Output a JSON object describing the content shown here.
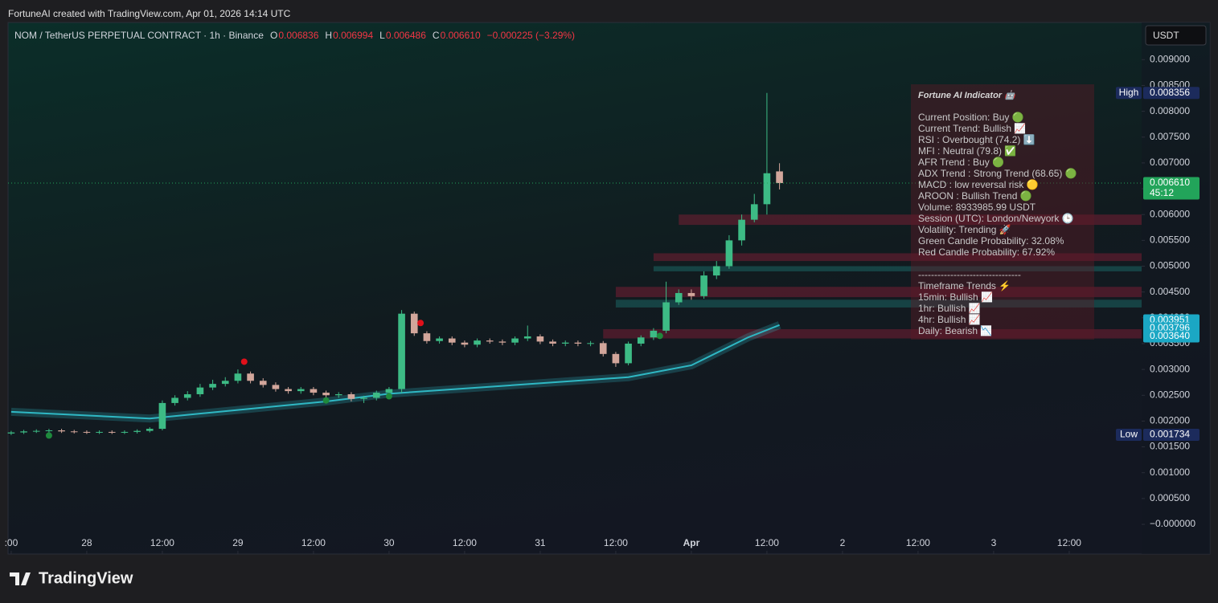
{
  "header": {
    "credit": "FortuneAI created with TradingView.com, Apr 01, 2026 14:14 UTC",
    "symbol": "NOM / TetherUS PERPETUAL CONTRACT · 1h · Binance",
    "ohlc": [
      {
        "key": "O",
        "value": "0.006836"
      },
      {
        "key": "H",
        "value": "0.006994"
      },
      {
        "key": "L",
        "value": "0.006486"
      },
      {
        "key": "C",
        "value": "0.006610"
      }
    ],
    "change": "−0.000225 (−3.29%)",
    "currency": "USDT"
  },
  "footer": {
    "logo": "TradingView"
  },
  "chart_data": {
    "type": "candlestick",
    "xlim": [
      -12.5,
      167.5
    ],
    "ylim": [
      -0.000575,
      0.00972
    ],
    "xticks": [
      {
        "value": -12,
        "label": ":00"
      },
      {
        "value": 0,
        "label": "28"
      },
      {
        "value": 12,
        "label": "12:00"
      },
      {
        "value": 24,
        "label": "29"
      },
      {
        "value": 36,
        "label": "12:00"
      },
      {
        "value": 48,
        "label": "30"
      },
      {
        "value": 60,
        "label": "12:00"
      },
      {
        "value": 72,
        "label": "31"
      },
      {
        "value": 84,
        "label": "12:00"
      },
      {
        "value": 96,
        "label": "Apr"
      },
      {
        "value": 108,
        "label": "12:00"
      },
      {
        "value": 120,
        "label": "2"
      },
      {
        "value": 132,
        "label": "12:00"
      },
      {
        "value": 144,
        "label": "3"
      },
      {
        "value": 156,
        "label": "12:00"
      }
    ],
    "yticks": [
      {
        "value": 0.009,
        "label": "0.009000"
      },
      {
        "value": 0.0085,
        "label": "0.008500"
      },
      {
        "value": 0.008,
        "label": "0.008000"
      },
      {
        "value": 0.0075,
        "label": "0.007500"
      },
      {
        "value": 0.007,
        "label": "0.007000"
      },
      {
        "value": 0.0065,
        "label": "0.006500"
      },
      {
        "value": 0.006,
        "label": "0.006000"
      },
      {
        "value": 0.0055,
        "label": "0.005500"
      },
      {
        "value": 0.005,
        "label": "0.005000"
      },
      {
        "value": 0.0045,
        "label": "0.004500"
      },
      {
        "value": 0.004,
        "label": "0.004000"
      },
      {
        "value": 0.0035,
        "label": "0.003500"
      },
      {
        "value": 0.003,
        "label": "0.003000"
      },
      {
        "value": 0.0025,
        "label": "0.002500"
      },
      {
        "value": 0.002,
        "label": "0.002000"
      },
      {
        "value": 0.0015,
        "label": "0.001500"
      },
      {
        "value": 0.001,
        "label": "0.001000"
      },
      {
        "value": 0.0005,
        "label": "0.000500"
      },
      {
        "value": 0,
        "label": "−0.000000"
      }
    ],
    "up_color": "#3dbb85",
    "down_color": "#d2a69b",
    "x": [
      -12,
      -10,
      -8,
      -6,
      -4,
      -2,
      0,
      2,
      4,
      6,
      8,
      10,
      12,
      14,
      16,
      18,
      20,
      22,
      24,
      26,
      28,
      30,
      32,
      34,
      36,
      38,
      40,
      42,
      44,
      46,
      48,
      50,
      52,
      54,
      56,
      58,
      60,
      62,
      64,
      66,
      68,
      70,
      72,
      74,
      76,
      78,
      80,
      82,
      84,
      86,
      88,
      90,
      92,
      94,
      96,
      98,
      100,
      102,
      104,
      106,
      108,
      110
    ],
    "open": [
      0.00176,
      0.00178,
      0.0018,
      0.00181,
      0.00182,
      0.0018,
      0.00179,
      0.00178,
      0.00179,
      0.00178,
      0.00179,
      0.00181,
      0.00185,
      0.00235,
      0.00245,
      0.00252,
      0.00265,
      0.00272,
      0.00278,
      0.00292,
      0.00278,
      0.0027,
      0.00262,
      0.00258,
      0.00262,
      0.00255,
      0.0025,
      0.00252,
      0.00243,
      0.00245,
      0.00255,
      0.00262,
      0.00408,
      0.0037,
      0.00355,
      0.0036,
      0.00352,
      0.00348,
      0.00356,
      0.00354,
      0.00352,
      0.0036,
      0.00364,
      0.00354,
      0.0035,
      0.00352,
      0.0035,
      0.00351,
      0.0033,
      0.00312,
      0.0035,
      0.00362,
      0.00375,
      0.0043,
      0.00448,
      0.00442,
      0.00482,
      0.005,
      0.0055,
      0.0059,
      0.0062,
      0.006836
    ],
    "high": [
      0.00181,
      0.00183,
      0.00184,
      0.00185,
      0.00185,
      0.00183,
      0.00182,
      0.00182,
      0.00182,
      0.00182,
      0.00184,
      0.00188,
      0.0024,
      0.0025,
      0.00258,
      0.00272,
      0.0028,
      0.00285,
      0.003,
      0.00296,
      0.00283,
      0.00275,
      0.00266,
      0.00266,
      0.00266,
      0.00259,
      0.00256,
      0.00256,
      0.00249,
      0.00259,
      0.00266,
      0.00415,
      0.00412,
      0.00374,
      0.00364,
      0.00364,
      0.00356,
      0.0036,
      0.0036,
      0.00358,
      0.00364,
      0.00385,
      0.00368,
      0.00358,
      0.00356,
      0.00356,
      0.00355,
      0.00355,
      0.00334,
      0.00354,
      0.00366,
      0.0038,
      0.0047,
      0.00455,
      0.00455,
      0.0049,
      0.0051,
      0.0056,
      0.006,
      0.0064,
      0.008356,
      0.006994
    ],
    "low": [
      0.00173,
      0.00175,
      0.00177,
      0.00178,
      0.00177,
      0.00176,
      0.00175,
      0.00175,
      0.00175,
      0.00175,
      0.00176,
      0.00178,
      0.00182,
      0.0023,
      0.0024,
      0.00247,
      0.0026,
      0.00267,
      0.00273,
      0.00273,
      0.00265,
      0.00257,
      0.00253,
      0.00253,
      0.0025,
      0.00245,
      0.00245,
      0.00238,
      0.00235,
      0.0024,
      0.0025,
      0.00255,
      0.00365,
      0.0035,
      0.0035,
      0.00347,
      0.00343,
      0.00343,
      0.0035,
      0.00347,
      0.00347,
      0.00355,
      0.00349,
      0.00345,
      0.00345,
      0.00345,
      0.00345,
      0.00325,
      0.00305,
      0.00308,
      0.00345,
      0.00357,
      0.0037,
      0.00425,
      0.00435,
      0.00437,
      0.00475,
      0.00495,
      0.0054,
      0.00585,
      0.006,
      0.006486
    ],
    "close": [
      0.00178,
      0.0018,
      0.00181,
      0.00182,
      0.0018,
      0.00179,
      0.00178,
      0.00179,
      0.00178,
      0.00179,
      0.00181,
      0.00185,
      0.00235,
      0.00245,
      0.00252,
      0.00265,
      0.00272,
      0.00278,
      0.00292,
      0.00278,
      0.0027,
      0.00262,
      0.00258,
      0.00262,
      0.00255,
      0.0025,
      0.00252,
      0.00243,
      0.00245,
      0.00255,
      0.00262,
      0.00408,
      0.0037,
      0.00355,
      0.0036,
      0.00352,
      0.00348,
      0.00356,
      0.00354,
      0.00352,
      0.0036,
      0.00364,
      0.00354,
      0.0035,
      0.00352,
      0.0035,
      0.00351,
      0.0033,
      0.00312,
      0.0035,
      0.00362,
      0.00375,
      0.0043,
      0.00448,
      0.00442,
      0.00482,
      0.005,
      0.0055,
      0.0059,
      0.0062,
      0.0068,
      0.00661
    ],
    "ribbon": {
      "color": "#2fb8c4",
      "x": [
        -12,
        10,
        38,
        48,
        86,
        96,
        105,
        110
      ],
      "values": [
        0.00218,
        0.00205,
        0.00238,
        0.00253,
        0.00285,
        0.00308,
        0.00362,
        0.00386
      ]
    },
    "signals": [
      {
        "x": -6,
        "value": 0.00172,
        "color": "#1e8a3c"
      },
      {
        "x": 25,
        "value": 0.00315,
        "color": "#e0101a"
      },
      {
        "x": 53,
        "value": 0.0039,
        "color": "#e0101a"
      },
      {
        "x": 38,
        "value": 0.0024,
        "color": "#1e8a3c"
      },
      {
        "x": 48,
        "value": 0.00248,
        "color": "#1e8a3c"
      },
      {
        "x": 91,
        "value": 0.00365,
        "color": "#1e8a3c"
      }
    ],
    "zones": [
      {
        "x": 94,
        "low": 0.0058,
        "high": 0.006,
        "color": "#b0203f"
      },
      {
        "x": 90,
        "low": 0.0051,
        "high": 0.00525,
        "color": "#b0203f"
      },
      {
        "x": 90,
        "low": 0.0049,
        "high": 0.005,
        "color": "#1f8f8a"
      },
      {
        "x": 84,
        "low": 0.0044,
        "high": 0.0046,
        "color": "#b0203f"
      },
      {
        "x": 84,
        "low": 0.0042,
        "high": 0.00435,
        "color": "#1f8f8a"
      },
      {
        "x": 82,
        "low": 0.0036,
        "high": 0.00378,
        "color": "#b0203f"
      }
    ],
    "price_tags": [
      {
        "value": 0.008356,
        "label": "0.008356",
        "tag": "High",
        "color": "#1c2b5c"
      },
      {
        "value": 0.00661,
        "label": "0.006610",
        "tag": "45:12",
        "color": "#22a45a"
      },
      {
        "value": 0.003951,
        "label": "0.003951",
        "color": "#1ba7c4"
      },
      {
        "value": 0.003796,
        "label": "0.003796",
        "color": "#1ba7c4"
      },
      {
        "value": 0.00364,
        "label": "0.003640",
        "color": "#1ba7c4"
      },
      {
        "value": 0.001734,
        "label": "0.001734",
        "tag": "Low",
        "color": "#1c2b5c"
      }
    ]
  },
  "panel": {
    "title": "Fortune AI Indicator 🤖",
    "lines": [
      "Current Position: Buy 🟢",
      "Current Trend: Bullish 📈",
      "RSI : Overbought (74.2) ⬇️",
      "MFI : Neutral (79.8) ✅",
      "AFR Trend : Buy 🟢",
      "ADX Trend : Strong Trend (68.65) 🟢",
      "MACD : low reversal risk 🟡",
      "AROON : Bullish Trend 🟢",
      "Volume: 8933985.99 USDT",
      "Session (UTC): London/Newyork 🕒",
      "Volatility: Trending 🚀",
      "Green Candle Probability: 32.08%",
      "Red Candle Probability: 67.92%"
    ],
    "separator": "--------------------------------",
    "timeframes": [
      "Timeframe Trends ⚡",
      "15min: Bullish 📈",
      "1hr: Bullish 📈",
      "4hr: Bullish 📈",
      "Daily: Bearish 📉"
    ]
  }
}
